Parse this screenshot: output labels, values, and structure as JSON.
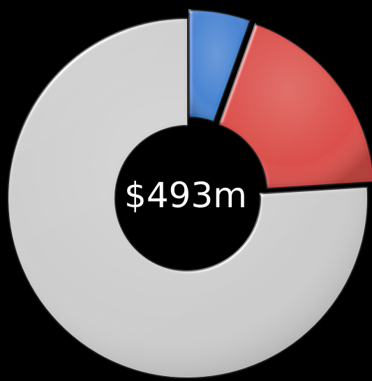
{
  "chart_data": {
    "type": "pie",
    "style": "donut",
    "center_label": "$493m",
    "exploded_slices": true,
    "legend": "none",
    "slices": [
      {
        "value": 5.5,
        "color": "#3f7fcf"
      },
      {
        "value": 18.5,
        "color": "#d94a45"
      },
      {
        "value": 76.0,
        "color": "#cbcbcb"
      }
    ]
  }
}
